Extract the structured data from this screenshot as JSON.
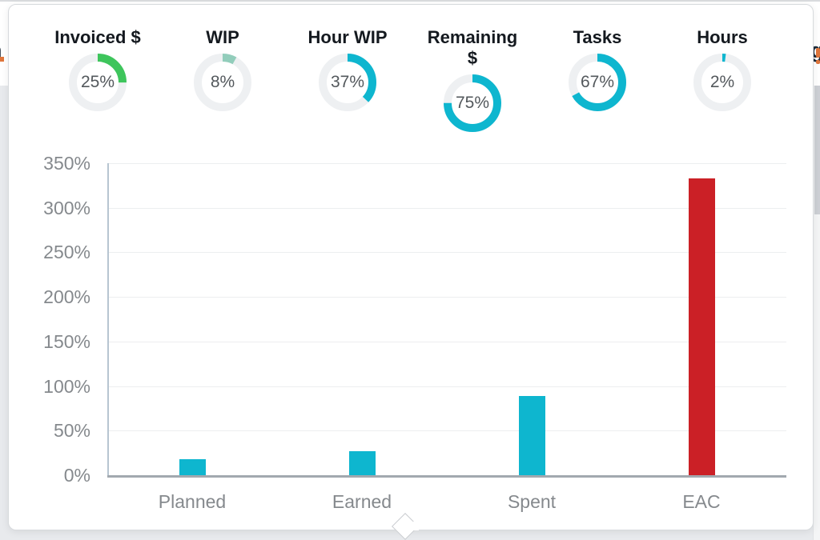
{
  "page_background": {
    "heading_fragment_left": "n",
    "heading_fragment_right": "g",
    "heading_color": "#1c2b3a",
    "heading_accent_color": "#e0763c",
    "grey_background": "#e8eaed"
  },
  "scrollbar": {
    "thumb_color": "#cdd0d5"
  },
  "gauges": [
    {
      "label": "Invoiced $",
      "value_text": "25%",
      "pct": 25,
      "color": "#3ec55c"
    },
    {
      "label": "WIP",
      "value_text": "8%",
      "pct": 8,
      "color": "#92cdbb"
    },
    {
      "label": "Hour WIP",
      "value_text": "37%",
      "pct": 37,
      "color": "#0eb6cf"
    },
    {
      "label": "Remaining $",
      "value_text": "75%",
      "pct": 75,
      "color": "#0eb6cf"
    },
    {
      "label": "Tasks",
      "value_text": "67%",
      "pct": 67,
      "color": "#0eb6cf"
    },
    {
      "label": "Hours",
      "value_text": "2%",
      "pct": 2,
      "color": "#0eb6cf"
    }
  ],
  "gauge_track_color": "#eef0f2",
  "chart_data": {
    "type": "bar",
    "title": "",
    "categories": [
      "Planned",
      "Earned",
      "Spent",
      "EAC"
    ],
    "values": [
      18,
      27,
      89,
      333
    ],
    "bar_colors": [
      "#0eb6cf",
      "#0eb6cf",
      "#0eb6cf",
      "#cb2026"
    ],
    "ylim": [
      0,
      350
    ],
    "ytick_step": 50,
    "ytick_labels": [
      "0%",
      "50%",
      "100%",
      "150%",
      "200%",
      "250%",
      "300%",
      "350%"
    ],
    "grid": true,
    "legend": "none",
    "xlabel": "",
    "ylabel": ""
  }
}
